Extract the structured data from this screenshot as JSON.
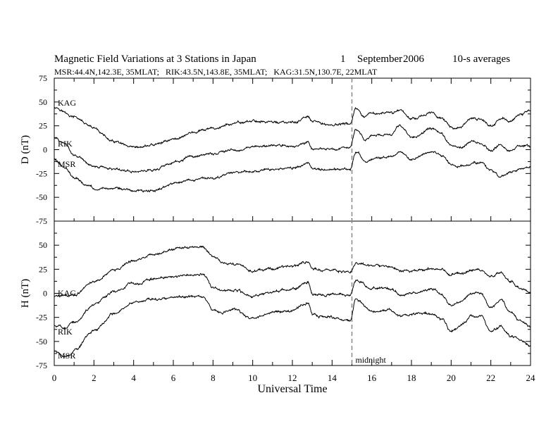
{
  "header": {
    "title": "Magnetic Field Variations at 3 Stations in Japan",
    "day": "1",
    "month": "September",
    "year": "2006",
    "averaging": "10-s averages",
    "stations_line": "MSR:44.4N,142.3E, 35MLAT;   RIK:43.5N,143.8E, 35MLAT;   KAG:31.5N,130.7E, 22MLAT"
  },
  "xaxis": {
    "label": "Universal Time",
    "ticks": [
      "0",
      "2",
      "4",
      "6",
      "8",
      "10",
      "12",
      "14",
      "16",
      "18",
      "20",
      "22",
      "24"
    ]
  },
  "annotation": {
    "midnight": "midnight",
    "midnight_ut": 15
  },
  "panels": [
    {
      "ylabel": "D (nT)",
      "yticks": [
        "75",
        "50",
        "25",
        "0",
        "-25",
        "-50",
        "-75"
      ],
      "stations": [
        "KAG",
        "RIK",
        "MSR"
      ]
    },
    {
      "ylabel": "H (nT)",
      "yticks": [
        "50",
        "25",
        "0",
        "-25",
        "-50",
        "-75"
      ],
      "stations": [
        "KAG",
        "RIK",
        "MSR"
      ]
    }
  ],
  "chart_data": [
    {
      "type": "line",
      "title": "Magnetic Field Variations at 3 Stations in Japan",
      "xlabel": "Universal Time",
      "ylabel": "D (nT)",
      "xlim": [
        0,
        24
      ],
      "ylim": [
        -75,
        75
      ],
      "grid": false,
      "vline_x": 15,
      "series": [
        {
          "name": "KAG",
          "points": [
            [
              0,
              45
            ],
            [
              1,
              34
            ],
            [
              2,
              22
            ],
            [
              3,
              8
            ],
            [
              4,
              1
            ],
            [
              5,
              5
            ],
            [
              6,
              11
            ],
            [
              7,
              18
            ],
            [
              8,
              22
            ],
            [
              9,
              27
            ],
            [
              10,
              30
            ],
            [
              11,
              29
            ],
            [
              12,
              28
            ],
            [
              12.8,
              34
            ],
            [
              13,
              29
            ],
            [
              14,
              26
            ],
            [
              14.9,
              27
            ],
            [
              15.2,
              43
            ],
            [
              15.6,
              33
            ],
            [
              16,
              38
            ],
            [
              17,
              38
            ],
            [
              17.4,
              42
            ],
            [
              18,
              33
            ],
            [
              19,
              38
            ],
            [
              19.5,
              34
            ],
            [
              20,
              23
            ],
            [
              20.5,
              24
            ],
            [
              21,
              32
            ],
            [
              21.5,
              32
            ],
            [
              22,
              25
            ],
            [
              22.5,
              32
            ],
            [
              23,
              30
            ],
            [
              23.5,
              37
            ],
            [
              24,
              41
            ]
          ]
        },
        {
          "name": "RIK",
          "points": [
            [
              0,
              13
            ],
            [
              0.5,
              7
            ],
            [
              1,
              -6
            ],
            [
              2,
              -17
            ],
            [
              3,
              -20
            ],
            [
              4,
              -23
            ],
            [
              5,
              -21
            ],
            [
              6,
              -14
            ],
            [
              7,
              -7
            ],
            [
              8,
              -4
            ],
            [
              9,
              0
            ],
            [
              10,
              2
            ],
            [
              11,
              4
            ],
            [
              12,
              3
            ],
            [
              12.8,
              8
            ],
            [
              13,
              2
            ],
            [
              14,
              1
            ],
            [
              14.9,
              2
            ],
            [
              15.2,
              23
            ],
            [
              15.7,
              10
            ],
            [
              16,
              14
            ],
            [
              17,
              16
            ],
            [
              17.4,
              24
            ],
            [
              18,
              12
            ],
            [
              19,
              22
            ],
            [
              19.5,
              17
            ],
            [
              20,
              4
            ],
            [
              20.5,
              2
            ],
            [
              21,
              8
            ],
            [
              21.5,
              8
            ],
            [
              22,
              -2
            ],
            [
              22.5,
              6
            ],
            [
              23,
              -1
            ],
            [
              23.5,
              5
            ],
            [
              24,
              3
            ]
          ]
        },
        {
          "name": "MSR",
          "points": [
            [
              0,
              -10
            ],
            [
              0.5,
              -18
            ],
            [
              1,
              -30
            ],
            [
              2,
              -40
            ],
            [
              3,
              -41
            ],
            [
              4,
              -43
            ],
            [
              5,
              -43
            ],
            [
              6,
              -36
            ],
            [
              7,
              -31
            ],
            [
              8,
              -30
            ],
            [
              9,
              -24
            ],
            [
              10,
              -22
            ],
            [
              11,
              -20
            ],
            [
              12,
              -20
            ],
            [
              12.8,
              -13
            ],
            [
              13,
              -20
            ],
            [
              14,
              -22
            ],
            [
              14.9,
              -21
            ],
            [
              15.2,
              -2
            ],
            [
              15.7,
              -12
            ],
            [
              16,
              -9
            ],
            [
              17,
              -8
            ],
            [
              17.4,
              -2
            ],
            [
              18,
              -10
            ],
            [
              19,
              -2
            ],
            [
              19.5,
              -6
            ],
            [
              20,
              -15
            ],
            [
              20.5,
              -18
            ],
            [
              21,
              -14
            ],
            [
              21.5,
              -14
            ],
            [
              22,
              -22
            ],
            [
              22.5,
              -28
            ],
            [
              23,
              -24
            ],
            [
              23.5,
              -20
            ],
            [
              24,
              -17
            ]
          ]
        }
      ]
    },
    {
      "type": "line",
      "xlabel": "Universal Time",
      "ylabel": "H (nT)",
      "xlim": [
        0,
        24
      ],
      "ylim": [
        -75,
        75
      ],
      "grid": false,
      "vline_x": 15,
      "series": [
        {
          "name": "KAG",
          "points": [
            [
              0,
              -3
            ],
            [
              1,
              -2
            ],
            [
              2,
              12
            ],
            [
              3,
              24
            ],
            [
              4,
              34
            ],
            [
              5,
              40
            ],
            [
              6,
              46
            ],
            [
              7,
              48
            ],
            [
              7.5,
              47
            ],
            [
              8,
              38
            ],
            [
              8.5,
              32
            ],
            [
              9,
              31
            ],
            [
              10,
              23
            ],
            [
              11,
              26
            ],
            [
              12,
              28
            ],
            [
              12.8,
              33
            ],
            [
              13,
              25
            ],
            [
              14,
              24
            ],
            [
              14.9,
              22
            ],
            [
              15.2,
              32
            ],
            [
              16,
              29
            ],
            [
              17,
              27
            ],
            [
              17.5,
              24
            ],
            [
              18,
              23
            ],
            [
              19,
              26
            ],
            [
              19.5,
              24
            ],
            [
              20,
              20
            ],
            [
              20.5,
              20
            ],
            [
              21,
              24
            ],
            [
              21.5,
              24
            ],
            [
              22,
              18
            ],
            [
              22.5,
              22
            ],
            [
              23,
              12
            ],
            [
              23.5,
              5
            ],
            [
              24,
              1
            ]
          ]
        },
        {
          "name": "RIK",
          "points": [
            [
              0,
              -33
            ],
            [
              0.5,
              -36
            ],
            [
              1,
              -30
            ],
            [
              2,
              -12
            ],
            [
              3,
              2
            ],
            [
              4,
              10
            ],
            [
              5,
              15
            ],
            [
              6,
              17
            ],
            [
              7,
              19
            ],
            [
              7.5,
              20
            ],
            [
              8,
              6
            ],
            [
              8.5,
              2
            ],
            [
              9,
              4
            ],
            [
              10,
              -3
            ],
            [
              11,
              2
            ],
            [
              12,
              4
            ],
            [
              12.8,
              12
            ],
            [
              13,
              0
            ],
            [
              14,
              -1
            ],
            [
              14.9,
              -2
            ],
            [
              15.2,
              14
            ],
            [
              16,
              6
            ],
            [
              17,
              4
            ],
            [
              17.5,
              -1
            ],
            [
              18,
              0
            ],
            [
              19,
              4
            ],
            [
              19.5,
              0
            ],
            [
              20,
              -14
            ],
            [
              20.5,
              -8
            ],
            [
              21,
              0
            ],
            [
              21.5,
              0
            ],
            [
              22,
              -14
            ],
            [
              22.5,
              -7
            ],
            [
              23,
              -20
            ],
            [
              23.5,
              -28
            ],
            [
              24,
              -35
            ]
          ]
        },
        {
          "name": "MSR",
          "points": [
            [
              0,
              -59
            ],
            [
              0.5,
              -65
            ],
            [
              1,
              -60
            ],
            [
              2,
              -38
            ],
            [
              3,
              -21
            ],
            [
              4,
              -10
            ],
            [
              5,
              -6
            ],
            [
              6,
              -5
            ],
            [
              7,
              -3
            ],
            [
              7.5,
              -4
            ],
            [
              8,
              -18
            ],
            [
              8.5,
              -20
            ],
            [
              9,
              -17
            ],
            [
              10,
              -26
            ],
            [
              11,
              -20
            ],
            [
              12,
              -18
            ],
            [
              12.8,
              -10
            ],
            [
              13,
              -23
            ],
            [
              14,
              -25
            ],
            [
              14.9,
              -28
            ],
            [
              15.2,
              -6
            ],
            [
              16,
              -18
            ],
            [
              17,
              -18
            ],
            [
              17.5,
              -24
            ],
            [
              18,
              -22
            ],
            [
              19,
              -20
            ],
            [
              19.5,
              -26
            ],
            [
              20,
              -40
            ],
            [
              20.5,
              -33
            ],
            [
              21,
              -24
            ],
            [
              21.5,
              -24
            ],
            [
              22,
              -40
            ],
            [
              22.5,
              -34
            ],
            [
              23,
              -44
            ],
            [
              23.5,
              -48
            ],
            [
              24,
              -55
            ]
          ]
        }
      ]
    }
  ]
}
